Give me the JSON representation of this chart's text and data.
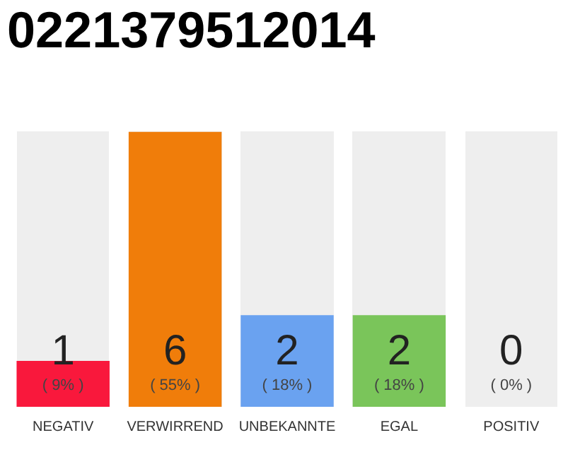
{
  "chart_data": {
    "type": "bar",
    "title": "0221379512014",
    "categories": [
      "NEGATIV",
      "VERWIRREND",
      "UNBEKANNTE",
      "EGAL",
      "POSITIV"
    ],
    "values": [
      1,
      6,
      2,
      2,
      0
    ],
    "colors": [
      "#f9183c",
      "#f07d0a",
      "#6aa2f0",
      "#7ac55a",
      "#aaaaaa"
    ],
    "data_labels": true,
    "annotations": [
      "( 9% )",
      "( 55% )",
      "( 18% )",
      "( 18% )",
      "( 0% )"
    ],
    "grid": false,
    "legend": false
  }
}
